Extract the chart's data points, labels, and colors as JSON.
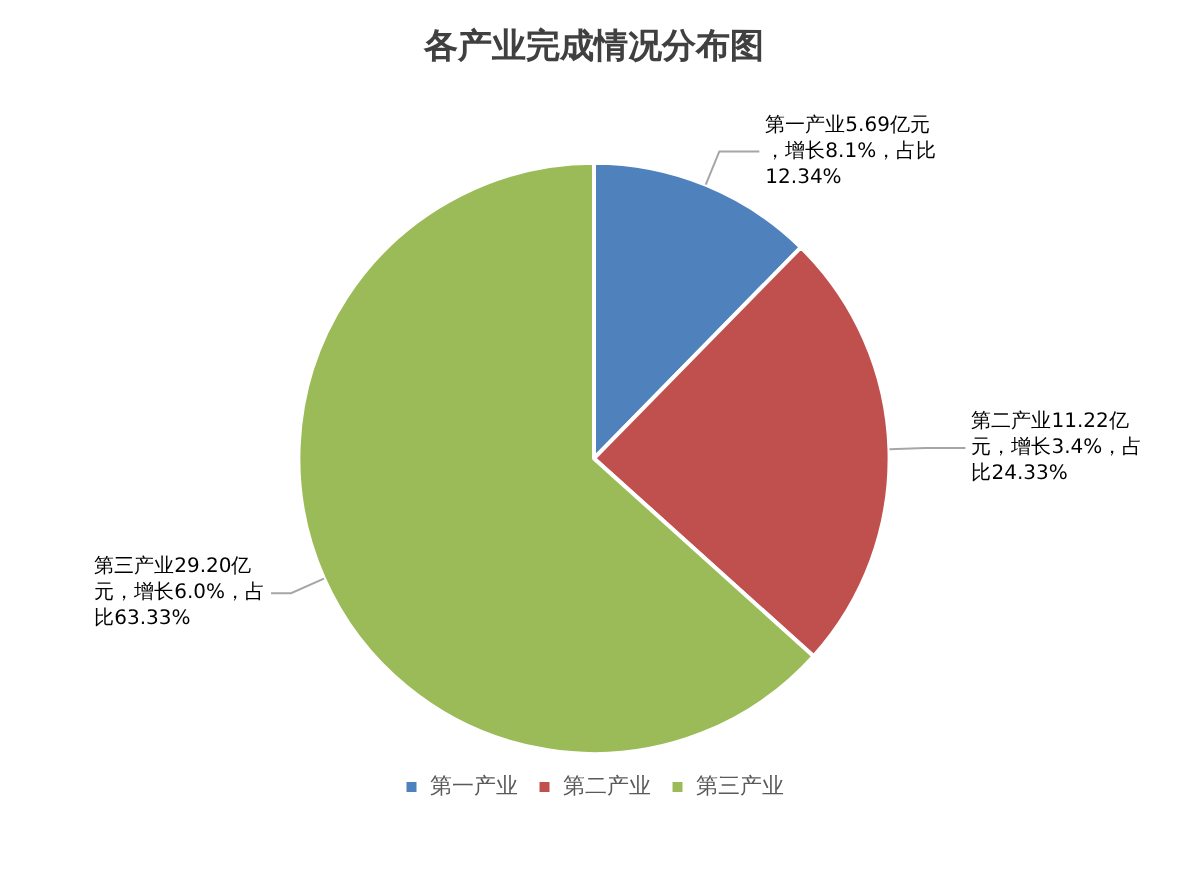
{
  "chart_data": {
    "type": "pie",
    "title": "各产业完成情况分布图",
    "categories": [
      "第一产业",
      "第二产业",
      "第三产业"
    ],
    "values": [
      5.69,
      11.22,
      29.2
    ],
    "colors": [
      "#4f81bd",
      "#c0504d",
      "#9bbb59"
    ],
    "value_labels": [
      "第一产业5.69亿元，增长8.1%，占比12.34%",
      "第二产业11.22亿元，增长3.4%，占比24.33%",
      "第三产业29.20亿元，增长6.0%，占比63.33%"
    ],
    "legend": "bottom"
  }
}
